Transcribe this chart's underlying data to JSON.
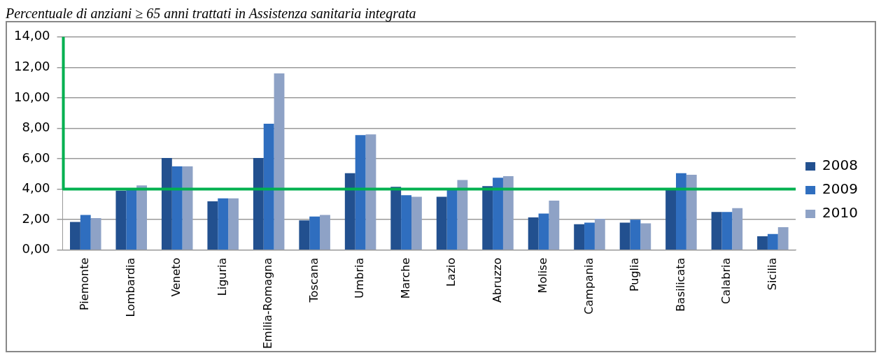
{
  "chart_data": {
    "type": "bar",
    "title": "Percentuale di anziani ≥ 65 anni trattati in Assistenza sanitaria integrata",
    "categories": [
      "Piemonte",
      "Lombardia",
      "Veneto",
      "Liguria",
      "Emilia-Romagna",
      "Toscana",
      "Umbria",
      "Marche",
      "Lazio",
      "Abruzzo",
      "Molise",
      "Campania",
      "Puglia",
      "Basilicata",
      "Calabria",
      "Sicilia"
    ],
    "series": [
      {
        "name": "2008",
        "color": "#22508f",
        "values": [
          1.85,
          3.9,
          6.05,
          3.2,
          6.05,
          1.95,
          5.05,
          4.15,
          3.5,
          4.2,
          2.15,
          1.7,
          1.8,
          3.95,
          2.5,
          0.9
        ]
      },
      {
        "name": "2009",
        "color": "#2f6ebf",
        "values": [
          2.3,
          4.05,
          5.5,
          3.4,
          8.3,
          2.2,
          7.55,
          3.6,
          3.95,
          4.75,
          2.4,
          1.8,
          2.0,
          5.05,
          2.5,
          1.05
        ]
      },
      {
        "name": "2010",
        "color": "#8ea2c6",
        "values": [
          2.1,
          4.25,
          5.5,
          3.4,
          11.6,
          2.3,
          7.6,
          3.5,
          4.6,
          4.85,
          3.25,
          2.05,
          1.75,
          4.95,
          2.75,
          1.5
        ]
      }
    ],
    "ylim": [
      0,
      14
    ],
    "yticks": [
      {
        "value": 0,
        "label": "0,00"
      },
      {
        "value": 2,
        "label": "2,00"
      },
      {
        "value": 4,
        "label": "4,00"
      },
      {
        "value": 6,
        "label": "6,00"
      },
      {
        "value": 8,
        "label": "8,00"
      },
      {
        "value": 10,
        "label": "10,00"
      },
      {
        "value": 12,
        "label": "12,00"
      },
      {
        "value": 14,
        "label": "14,00"
      }
    ],
    "ref_lines": [
      {
        "axis": "y",
        "value": 4,
        "color": "#00b050"
      }
    ],
    "grid": "y",
    "legend": "right"
  }
}
